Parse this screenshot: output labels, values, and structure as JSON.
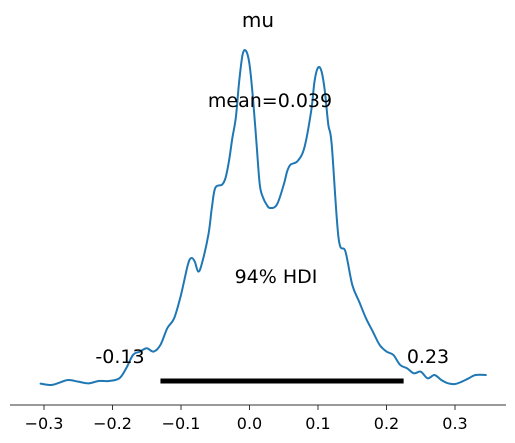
{
  "chart_data": {
    "type": "line",
    "title": "mu",
    "xlabel": "",
    "ylabel": "",
    "xlim": [
      -0.315,
      0.36
    ],
    "ylim": [
      0,
      1.0
    ],
    "xticks": [
      -0.3,
      -0.2,
      -0.1,
      0.0,
      0.1,
      0.2,
      0.3
    ],
    "xtick_labels": [
      "−0.3",
      "−0.2",
      "−0.1",
      "0.0",
      "0.1",
      "0.2",
      "0.3"
    ],
    "grid": false,
    "series": [
      {
        "color": "#1f77b4",
        "x": [
          -0.305,
          -0.29,
          -0.28,
          -0.265,
          -0.25,
          -0.235,
          -0.22,
          -0.205,
          -0.19,
          -0.18,
          -0.17,
          -0.16,
          -0.15,
          -0.14,
          -0.13,
          -0.12,
          -0.11,
          -0.1,
          -0.09,
          -0.085,
          -0.08,
          -0.075,
          -0.07,
          -0.06,
          -0.055,
          -0.05,
          -0.04,
          -0.035,
          -0.03,
          -0.025,
          -0.02,
          -0.015,
          -0.01,
          -0.005,
          0.0,
          0.005,
          0.01,
          0.015,
          0.02,
          0.025,
          0.03,
          0.04,
          0.05,
          0.055,
          0.06,
          0.07,
          0.08,
          0.09,
          0.095,
          0.1,
          0.105,
          0.11,
          0.115,
          0.12,
          0.13,
          0.14,
          0.15,
          0.16,
          0.17,
          0.18,
          0.19,
          0.2,
          0.21,
          0.22,
          0.23,
          0.24,
          0.25,
          0.26,
          0.27,
          0.28,
          0.29,
          0.3,
          0.31,
          0.32,
          0.33,
          0.345
        ],
        "y": [
          0.004,
          0.0,
          0.005,
          0.015,
          0.01,
          0.005,
          0.012,
          0.012,
          0.02,
          0.05,
          0.09,
          0.1,
          0.11,
          0.1,
          0.12,
          0.17,
          0.2,
          0.27,
          0.36,
          0.38,
          0.37,
          0.34,
          0.36,
          0.45,
          0.53,
          0.59,
          0.6,
          0.62,
          0.67,
          0.74,
          0.8,
          0.91,
          0.99,
          1.0,
          0.96,
          0.86,
          0.73,
          0.6,
          0.56,
          0.54,
          0.53,
          0.54,
          0.6,
          0.64,
          0.66,
          0.67,
          0.71,
          0.82,
          0.91,
          0.95,
          0.94,
          0.88,
          0.78,
          0.72,
          0.44,
          0.4,
          0.3,
          0.25,
          0.2,
          0.16,
          0.12,
          0.1,
          0.09,
          0.06,
          0.05,
          0.035,
          0.04,
          0.02,
          0.03,
          0.015,
          0.005,
          0.003,
          0.01,
          0.02,
          0.03,
          0.03
        ]
      }
    ],
    "annotations": {
      "mean_label": "mean=0.039",
      "mean_value": 0.039,
      "hdi_label": "94% HDI",
      "hdi_prob": 0.94,
      "hdi_low": -0.13,
      "hdi_high": 0.225,
      "hdi_low_label": "-0.13",
      "hdi_high_label": "0.23"
    },
    "colors": {
      "line": "#1f77b4",
      "hdi_bar": "#000000",
      "axis": "#333333"
    }
  }
}
